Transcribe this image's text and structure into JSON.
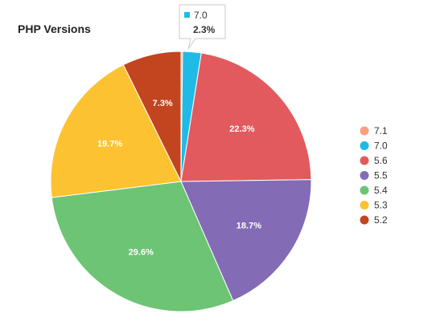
{
  "chart_data": {
    "type": "pie",
    "title": "PHP Versions",
    "legend_position": "right",
    "slices": [
      {
        "label": "7.1",
        "value": 0.2,
        "color": "#f7a27d",
        "value_label": ""
      },
      {
        "label": "7.0",
        "value": 2.3,
        "color": "#1fbbe6",
        "value_label": "2.3%"
      },
      {
        "label": "5.6",
        "value": 22.3,
        "color": "#e25a5e",
        "value_label": "22.3%"
      },
      {
        "label": "5.5",
        "value": 18.7,
        "color": "#836bb5",
        "value_label": "18.7%"
      },
      {
        "label": "5.4",
        "value": 29.6,
        "color": "#6cc474",
        "value_label": "29.6%"
      },
      {
        "label": "5.3",
        "value": 19.7,
        "color": "#fcc232",
        "value_label": "19.7%"
      },
      {
        "label": "5.2",
        "value": 7.3,
        "color": "#c2451f",
        "value_label": "7.3%"
      }
    ],
    "tooltip": {
      "series": "7.0",
      "value": "2.3%",
      "color": "#1fbbe6"
    }
  }
}
